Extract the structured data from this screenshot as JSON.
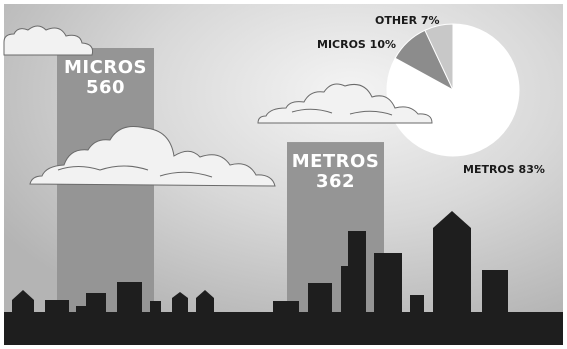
{
  "chart_data": [
    {
      "type": "bar",
      "categories": [
        "MICROS",
        "METROS"
      ],
      "values": [
        560,
        362
      ]
    },
    {
      "type": "pie",
      "slices": [
        {
          "label": "METROS",
          "value": 83,
          "display": "METROS 83%",
          "color": "#ffffff"
        },
        {
          "label": "MICROS",
          "value": 10,
          "display": "MICROS 10%",
          "color": "#8c8c8c"
        },
        {
          "label": "OTHER",
          "value": 7,
          "display": "OTHER 7%",
          "color": "#c8c8c8"
        }
      ]
    }
  ],
  "colors": {
    "background": "#c9c9c9",
    "bar": "#959595",
    "skyline": "#1e1e1e",
    "cloud": "#f2f2f2"
  }
}
